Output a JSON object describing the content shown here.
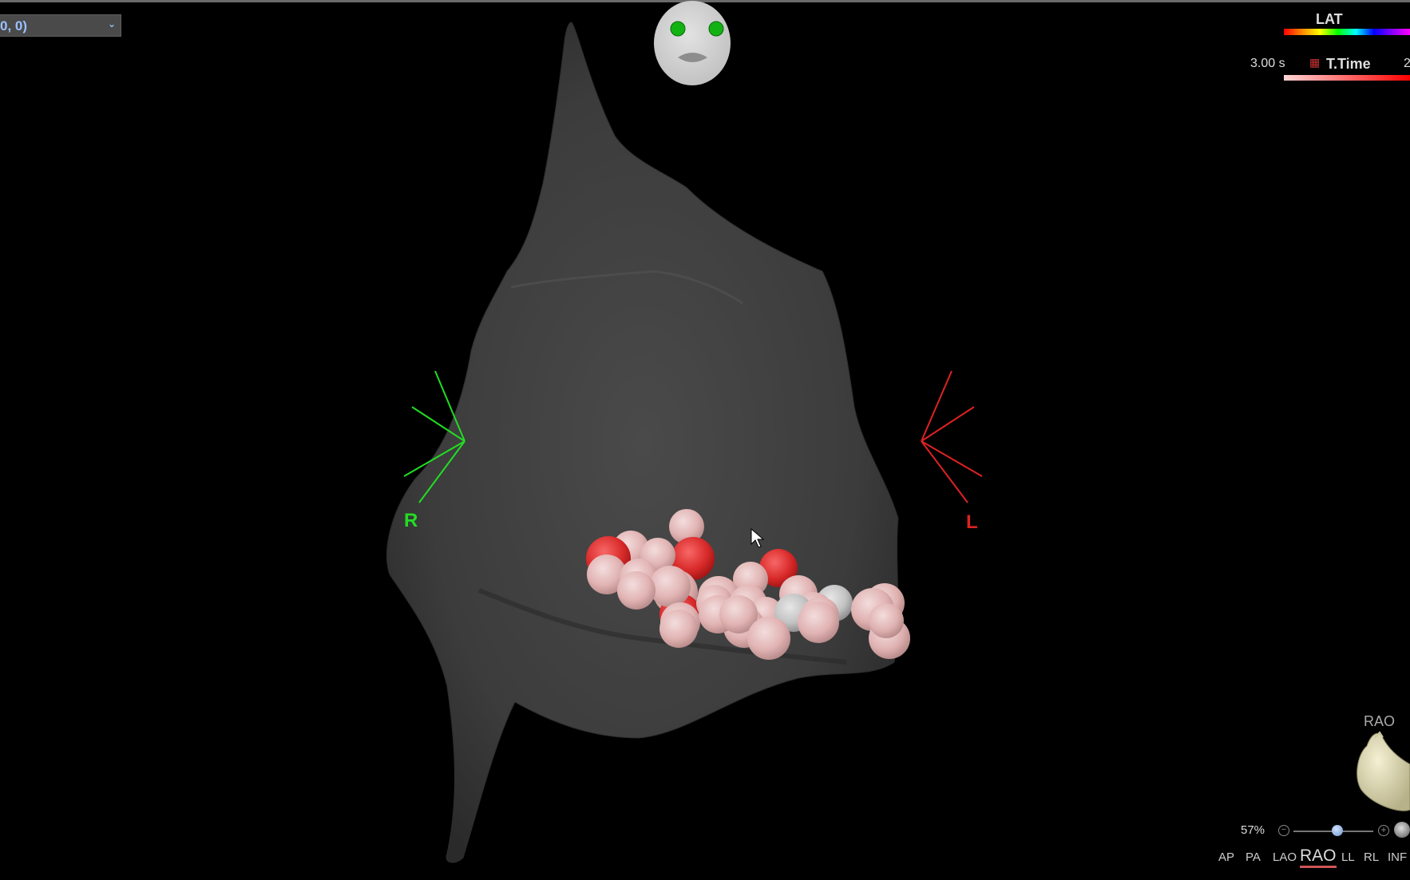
{
  "selector": {
    "value": "0, 0)",
    "chevron_icon": "chevron-down-icon"
  },
  "legend": {
    "lat_title": "LAT",
    "time_value": "3.00 s",
    "ttime_label": "T.Time",
    "ttime_max_partial": "2",
    "colors": {
      "lat_gradient": [
        "#ff0000",
        "#ffff00",
        "#00ff00",
        "#00ffff",
        "#0000ff",
        "#ff00ff"
      ],
      "ttime_gradient": [
        "#ffd6d6",
        "#ff0000"
      ]
    }
  },
  "orientation": {
    "right_label": "R",
    "left_label": "L",
    "right_color": "#22dd22",
    "left_color": "#dd2222"
  },
  "mini_view": {
    "label": "RAO"
  },
  "zoom": {
    "value": "57%"
  },
  "views": {
    "items": [
      "AP",
      "PA",
      "LAO",
      "RAO",
      "LL",
      "RL",
      "INF"
    ],
    "active": "RAO"
  }
}
